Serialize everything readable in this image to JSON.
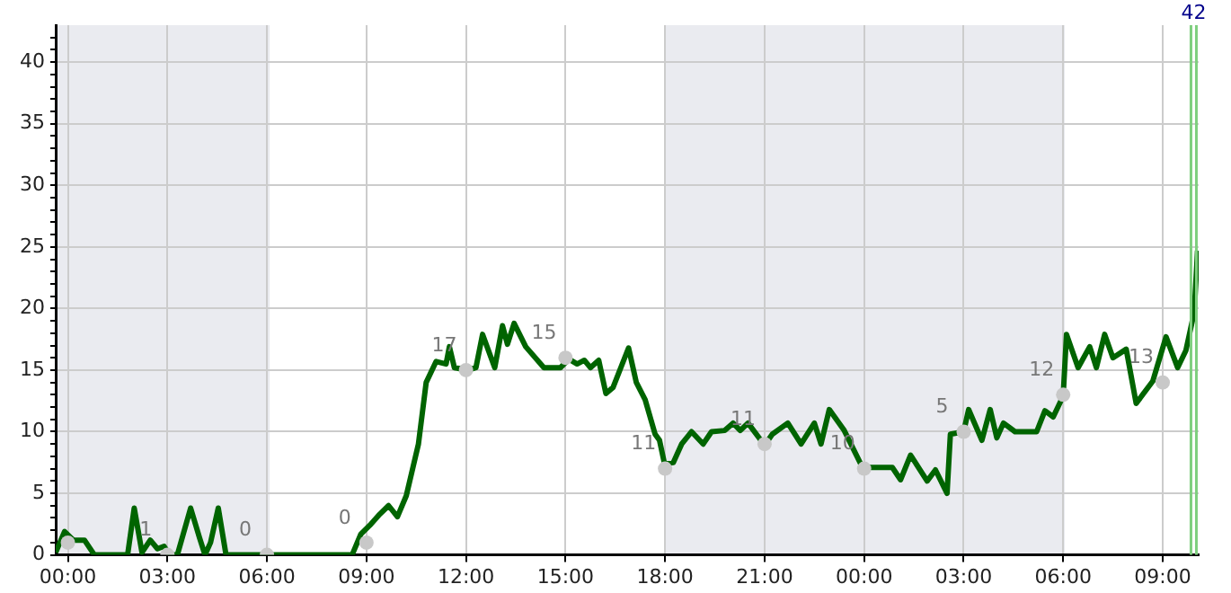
{
  "chart_data": {
    "type": "line",
    "xlim": [
      "--01-01T23:38",
      "--01-03T10:05"
    ],
    "ylim": [
      0,
      43
    ],
    "xticks": [
      {
        "value": "--01-02T00:00",
        "label": "00:00"
      },
      {
        "value": "--01-02T03:00",
        "label": "03:00"
      },
      {
        "value": "--01-02T06:00",
        "label": "06:00"
      },
      {
        "value": "--01-02T09:00",
        "label": "09:00"
      },
      {
        "value": "--01-02T12:00",
        "label": "12:00"
      },
      {
        "value": "--01-02T15:00",
        "label": "15:00"
      },
      {
        "value": "--01-02T18:00",
        "label": "18:00"
      },
      {
        "value": "--01-02T21:00",
        "label": "21:00"
      },
      {
        "value": "--01-03T00:00",
        "label": "00:00"
      },
      {
        "value": "--01-03T03:00",
        "label": "03:00"
      },
      {
        "value": "--01-03T06:00",
        "label": "06:00"
      },
      {
        "value": "--01-03T09:00",
        "label": "09:00"
      }
    ],
    "yticks": [
      0,
      {
        "value": 1,
        "label": null
      },
      {
        "value": 2,
        "label": null
      },
      {
        "value": 3,
        "label": null
      },
      {
        "value": 4,
        "label": null
      },
      5,
      {
        "value": 6,
        "label": null
      },
      {
        "value": 7,
        "label": null
      },
      {
        "value": 8,
        "label": null
      },
      {
        "value": 9,
        "label": null
      },
      10,
      {
        "value": 11,
        "label": null
      },
      {
        "value": 12,
        "label": null
      },
      {
        "value": 13,
        "label": null
      },
      {
        "value": 14,
        "label": null
      },
      15,
      {
        "value": 16,
        "label": null
      },
      {
        "value": 17,
        "label": null
      },
      {
        "value": 18,
        "label": null
      },
      {
        "value": 19,
        "label": null
      },
      20,
      {
        "value": 21,
        "label": null
      },
      {
        "value": 22,
        "label": null
      },
      {
        "value": 23,
        "label": null
      },
      {
        "value": 24,
        "label": null
      },
      25,
      {
        "value": 26,
        "label": null
      },
      {
        "value": 27,
        "label": null
      },
      {
        "value": 28,
        "label": null
      },
      {
        "value": 29,
        "label": null
      },
      30,
      {
        "value": 31,
        "label": null
      },
      {
        "value": 32,
        "label": null
      },
      {
        "value": 33,
        "label": null
      },
      {
        "value": 34,
        "label": null
      },
      35,
      {
        "value": 36,
        "label": null
      },
      {
        "value": 37,
        "label": null
      },
      {
        "value": 38,
        "label": null
      },
      {
        "value": 39,
        "label": null
      },
      40,
      {
        "value": 41,
        "label": null
      },
      {
        "value": 42,
        "label": null
      }
    ],
    "grid": true,
    "bands": [
      {
        "axis": "x",
        "from": "--01-01T23:38",
        "to": "--01-02T06:05",
        "color": "#eaebf0"
      },
      {
        "axis": "x",
        "from": "--01-02T18:00",
        "to": "--01-03T06:03",
        "color": "#eaebf0"
      }
    ],
    "ref_lines": [
      {
        "axis": "x",
        "value": "--01-03T09:56",
        "label": "42",
        "color": "#7fcf7f"
      }
    ],
    "annotations": [
      {
        "text": "1",
        "x": "--01-02T03:00",
        "y": 0
      },
      {
        "text": "0",
        "x": "--01-02T06:00",
        "y": 0
      },
      {
        "text": "0",
        "x": "--01-02T09:00",
        "y": 1
      },
      {
        "text": "17",
        "x": "--01-02T12:00",
        "y": 15
      },
      {
        "text": "15",
        "x": "--01-02T15:00",
        "y": 16
      },
      {
        "text": "11",
        "x": "--01-02T18:00",
        "y": 7
      },
      {
        "text": "11",
        "x": "--01-02T21:00",
        "y": 9
      },
      {
        "text": "10",
        "x": "--01-03T00:00",
        "y": 7
      },
      {
        "text": "5",
        "x": "--01-03T03:00",
        "y": 10
      },
      {
        "text": "12",
        "x": "--01-03T06:00",
        "y": 13
      },
      {
        "text": "13",
        "x": "--01-03T09:00",
        "y": 14
      }
    ],
    "series": [
      {
        "color": "#006400",
        "marker": "none",
        "line_style": "solid",
        "x": [
          "--01-01T23:38",
          "--01-01T23:54",
          "--01-02T00:10",
          "--01-02T00:30",
          "--01-02T00:48",
          "--01-02T01:48",
          "--01-02T02:00",
          "--01-02T02:14",
          "--01-02T02:29",
          "--01-02T02:42",
          "--01-02T02:54",
          "--01-02T03:04",
          "--01-02T03:18",
          "--01-02T03:42",
          "--01-02T03:58",
          "--01-02T04:08",
          "--01-02T04:18",
          "--01-02T04:32",
          "--01-02T04:46",
          "--01-02T08:34",
          "--01-02T08:50",
          "--01-02T09:06",
          "--01-02T09:24",
          "--01-02T09:40",
          "--01-02T09:56",
          "--01-02T10:12",
          "--01-02T10:34",
          "--01-02T10:48",
          "--01-02T11:06",
          "--01-02T11:24",
          "--01-02T11:30",
          "--01-02T11:39",
          "--01-02T12:04",
          "--01-02T12:18",
          "--01-02T12:30",
          "--01-02T12:52",
          "--01-02T13:06",
          "--01-02T13:15",
          "--01-02T13:27",
          "--01-02T13:48",
          "--01-02T14:21",
          "--01-02T14:51",
          "--01-02T15:06",
          "--01-02T15:21",
          "--01-02T15:34",
          "--01-02T15:45",
          "--01-02T16:00",
          "--01-02T16:13",
          "--01-02T16:26",
          "--01-02T16:54",
          "--01-02T17:08",
          "--01-02T17:24",
          "--01-02T17:42",
          "--01-02T17:50",
          "--01-02T17:59",
          "--01-02T18:15",
          "--01-02T18:30",
          "--01-02T18:48",
          "--01-02T19:09",
          "--01-02T19:24",
          "--01-02T19:48",
          "--01-02T20:03",
          "--01-02T20:16",
          "--01-02T20:30",
          "--01-02T21:00",
          "--01-02T21:14",
          "--01-02T21:42",
          "--01-02T22:06",
          "--01-02T22:30",
          "--01-02T22:42",
          "--01-02T22:57",
          "--01-02T23:24",
          "--01-02T23:57",
          "--01-03T00:51",
          "--01-03T01:06",
          "--01-03T01:24",
          "--01-03T01:54",
          "--01-03T02:09",
          "--01-03T02:30",
          "--01-03T02:36",
          "--01-03T03:00",
          "--01-03T03:09",
          "--01-03T03:33",
          "--01-03T03:48",
          "--01-03T04:00",
          "--01-03T04:12",
          "--01-03T04:33",
          "--01-03T05:12",
          "--01-03T05:27",
          "--01-03T05:42",
          "--01-03T06:00",
          "--01-03T06:06",
          "--01-03T06:27",
          "--01-03T06:48",
          "--01-03T07:00",
          "--01-03T07:15",
          "--01-03T07:30",
          "--01-03T07:54",
          "--01-03T08:12",
          "--01-03T08:42",
          "--01-03T09:06",
          "--01-03T09:27",
          "--01-03T09:42",
          "--01-03T09:57",
          "--01-03T10:03"
        ],
        "values": [
          0.2,
          1.9,
          1.2,
          1.2,
          0,
          0,
          3.8,
          0.2,
          1.2,
          0.5,
          0.7,
          0,
          0,
          3.8,
          1.4,
          0,
          1,
          3.8,
          0,
          0,
          1.7,
          2.4,
          3.3,
          4,
          3.1,
          4.8,
          9,
          14,
          15.7,
          15.5,
          16.9,
          15.2,
          15,
          15.2,
          17.9,
          15.2,
          18.6,
          17.1,
          18.8,
          16.9,
          15.2,
          15.2,
          15.9,
          15.5,
          15.8,
          15.2,
          15.8,
          13.1,
          13.6,
          16.8,
          14,
          12.6,
          9.8,
          9.3,
          7.4,
          7.5,
          9,
          10,
          9,
          10,
          10.1,
          10.7,
          10.1,
          10.7,
          8.9,
          9.8,
          10.7,
          9,
          10.7,
          9,
          11.8,
          10.1,
          7.1,
          7.1,
          6.1,
          8.1,
          6,
          6.9,
          5,
          9.8,
          10,
          11.8,
          9.3,
          11.8,
          9.5,
          10.7,
          10,
          10,
          11.7,
          11.2,
          12.9,
          17.9,
          15.2,
          16.9,
          15.2,
          17.9,
          16,
          16.7,
          12.3,
          14.1,
          17.7,
          15.2,
          16.6,
          19.7,
          24.7
        ]
      },
      {
        "type": "scatter",
        "color": "#c8c8c8",
        "marker": "circle",
        "x": [
          "--01-02T00:00",
          "--01-02T03:00",
          "--01-02T06:00",
          "--01-02T09:00",
          "--01-02T12:00",
          "--01-02T15:00",
          "--01-02T18:00",
          "--01-02T21:00",
          "--01-03T00:00",
          "--01-03T03:00",
          "--01-03T06:00",
          "--01-03T09:00"
        ],
        "values": [
          1,
          0,
          0,
          1,
          15,
          16,
          7,
          9,
          7,
          10,
          13,
          14
        ]
      }
    ]
  }
}
